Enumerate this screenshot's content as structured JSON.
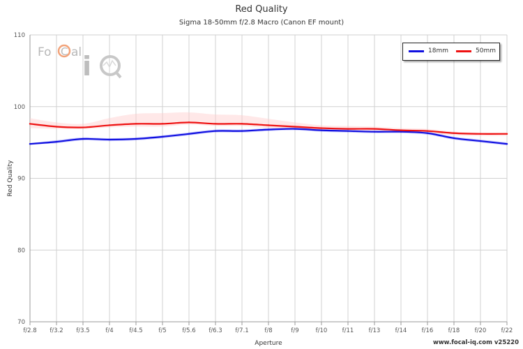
{
  "chart_data": {
    "type": "line",
    "title": "Red Quality",
    "subtitle": "Sigma 18-50mm f/2.8 Macro (Canon EF mount)",
    "xlabel": "Aperture",
    "ylabel": "Red Quality",
    "categories": [
      "f/2.8",
      "f/3.2",
      "f/3.5",
      "f/4",
      "f/4.5",
      "f/5",
      "f/5.6",
      "f/6.3",
      "f/7.1",
      "f/8",
      "f/9",
      "f/10",
      "f/11",
      "f/13",
      "f/14",
      "f/16",
      "f/18",
      "f/20",
      "f/22"
    ],
    "ylim": [
      70,
      110
    ],
    "yticks": [
      70,
      80,
      90,
      100,
      110
    ],
    "grid": true,
    "legend_position": "top-right",
    "series": [
      {
        "name": "18mm",
        "color": "#1010e0",
        "band_color": "#8c8cff",
        "values": [
          94.8,
          95.1,
          95.5,
          95.4,
          95.5,
          95.8,
          96.2,
          96.6,
          96.6,
          96.8,
          96.9,
          96.7,
          96.6,
          96.5,
          96.5,
          96.3,
          95.6,
          95.2,
          94.8
        ],
        "band_upper": [
          94.9,
          95.3,
          95.7,
          95.6,
          95.7,
          96.0,
          96.4,
          96.8,
          96.8,
          97.0,
          97.1,
          96.9,
          96.8,
          96.7,
          96.7,
          96.5,
          95.8,
          95.4,
          95.0
        ],
        "band_lower": [
          94.7,
          94.9,
          95.3,
          95.2,
          95.3,
          95.6,
          96.0,
          96.4,
          96.4,
          96.6,
          96.7,
          96.5,
          96.4,
          96.3,
          96.3,
          96.1,
          95.4,
          95.0,
          94.6
        ]
      },
      {
        "name": "50mm",
        "color": "#ee1111",
        "band_color": "#ffcccc",
        "values": [
          97.6,
          97.2,
          97.1,
          97.4,
          97.6,
          97.6,
          97.8,
          97.6,
          97.6,
          97.4,
          97.2,
          97.0,
          96.9,
          96.9,
          96.7,
          96.6,
          96.3,
          96.2,
          96.2
        ],
        "band_upper": [
          98.4,
          97.8,
          97.6,
          98.4,
          99.0,
          99.1,
          99.2,
          98.9,
          98.8,
          98.3,
          97.8,
          97.4,
          97.3,
          97.2,
          97.0,
          96.9,
          96.5,
          96.4,
          96.4
        ],
        "band_lower": [
          97.0,
          96.9,
          96.9,
          97.1,
          97.2,
          97.2,
          97.5,
          97.3,
          97.3,
          97.0,
          96.9,
          96.7,
          96.6,
          96.6,
          96.4,
          96.3,
          96.0,
          95.9,
          95.9
        ]
      }
    ]
  },
  "logo": {
    "text_focal": "FoCal",
    "text_iq": "iQ"
  },
  "watermark": "www.focal-iq.com v25220"
}
